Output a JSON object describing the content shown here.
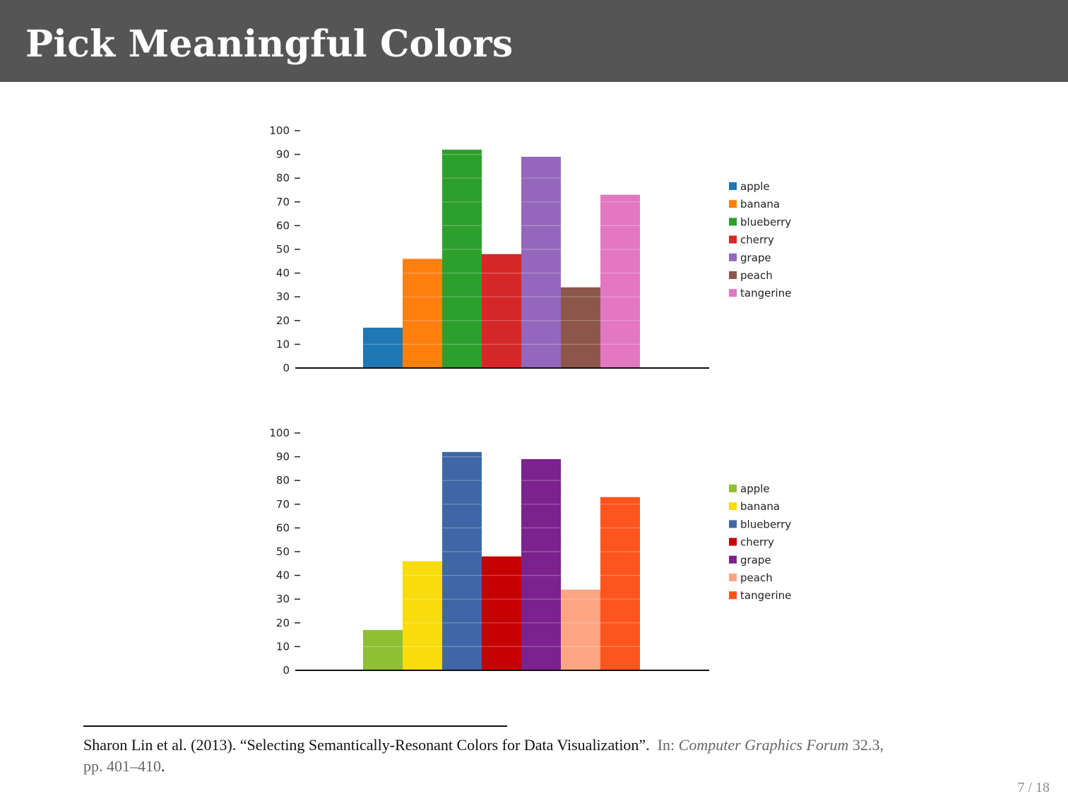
{
  "slide": {
    "title": "Pick Meaningful Colors",
    "page_number": "7 / 18"
  },
  "footnote": {
    "authors": "Sharon Lin et al. (2013).",
    "paper_title": "“Selecting Semantically-Resonant Colors for Data Visualization”.",
    "in_label": "In:",
    "journal": "Computer Graphics Forum",
    "volume": "32.3,",
    "pages": "pp. 401–410",
    "period": "."
  },
  "chart_data": [
    {
      "type": "bar",
      "categories": [
        "apple",
        "banana",
        "blueberry",
        "cherry",
        "grape",
        "peach",
        "tangerine"
      ],
      "values": [
        17,
        46,
        92,
        48,
        89,
        34,
        73
      ],
      "colors": [
        "#1f77b4",
        "#ff7f0e",
        "#2ca02c",
        "#d62728",
        "#9467bd",
        "#8c564b",
        "#e377c2"
      ],
      "ylim": [
        0,
        100
      ],
      "yticks": [
        "0",
        "10",
        "20",
        "30",
        "40",
        "50",
        "60",
        "70",
        "80",
        "90",
        "100"
      ],
      "grid": true,
      "legend": "right"
    },
    {
      "type": "bar",
      "categories": [
        "apple",
        "banana",
        "blueberry",
        "cherry",
        "grape",
        "peach",
        "tangerine"
      ],
      "values": [
        17,
        46,
        92,
        48,
        89,
        34,
        73
      ],
      "colors": [
        "#8fbf33",
        "#f9dc0c",
        "#3f67a7",
        "#c70003",
        "#7c228f",
        "#fda582",
        "#fe551f"
      ],
      "ylim": [
        0,
        100
      ],
      "yticks": [
        "0",
        "10",
        "20",
        "30",
        "40",
        "50",
        "60",
        "70",
        "80",
        "90",
        "100"
      ],
      "grid": true,
      "legend": "right"
    }
  ]
}
